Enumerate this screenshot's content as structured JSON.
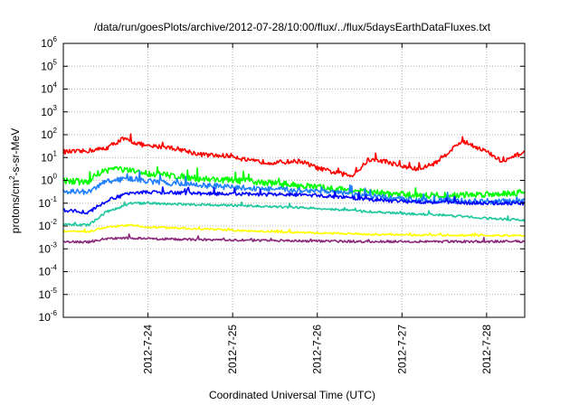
{
  "chart_data": {
    "type": "line",
    "title": "/data/run/goesPlots/archive/2012-07-28/10:00/flux/../flux/5daysEarthDataFluxes.txt",
    "xlabel": "Coordinated Universal Time (UTC)",
    "ylabel": {
      "prefix": "protons/cm",
      "sup": "2",
      "suffix": "-s-sr-MeV"
    },
    "yscale": "log",
    "ylim_exponent": [
      -6,
      6
    ],
    "y_tick_labels": [
      {
        "exp": 6,
        "base": "10",
        "sup": "6"
      },
      {
        "exp": 5,
        "base": "10",
        "sup": "5"
      },
      {
        "exp": 4,
        "base": "10",
        "sup": "4"
      },
      {
        "exp": 3,
        "base": "10",
        "sup": "3"
      },
      {
        "exp": 2,
        "base": "10",
        "sup": "2"
      },
      {
        "exp": 1,
        "base": "10",
        "sup": "1"
      },
      {
        "exp": 0,
        "base": "10",
        "sup": "0"
      },
      {
        "exp": -1,
        "base": "10",
        "sup": "-1"
      },
      {
        "exp": -2,
        "base": "10",
        "sup": "-2"
      },
      {
        "exp": -3,
        "base": "10",
        "sup": "-3"
      },
      {
        "exp": -4,
        "base": "10",
        "sup": "-4"
      },
      {
        "exp": -5,
        "base": "10",
        "sup": "-5"
      },
      {
        "exp": -6,
        "base": "10",
        "sup": "-6"
      }
    ],
    "x_range_days": [
      23.0,
      28.45
    ],
    "x_ticks": [
      {
        "day": 24,
        "label": "2012-7-24"
      },
      {
        "day": 25,
        "label": "2012-7-25"
      },
      {
        "day": 26,
        "label": "2012-7-26"
      },
      {
        "day": 27,
        "label": "2012-7-27"
      },
      {
        "day": 28,
        "label": "2012-7-28"
      }
    ],
    "grid": true,
    "series": [
      {
        "color": "#ff0000",
        "noise": 0.1,
        "x": [
          23.0,
          23.2,
          23.5,
          23.7,
          23.9,
          24.0,
          24.2,
          24.4,
          24.6,
          24.8,
          25.0,
          25.2,
          25.5,
          25.8,
          26.0,
          26.2,
          26.4,
          26.5,
          26.6,
          26.8,
          27.0,
          27.2,
          27.4,
          27.6,
          27.7,
          27.8,
          28.0,
          28.2,
          28.3,
          28.45
        ],
        "y": [
          18,
          18,
          25,
          65,
          40,
          30,
          30,
          22,
          14,
          12,
          12,
          7,
          6,
          7,
          3.5,
          2.2,
          1.6,
          3,
          8,
          7,
          4,
          3,
          6,
          25,
          50,
          40,
          18,
          6,
          10,
          18
        ]
      },
      {
        "color": "#00ff00",
        "noise": 0.14,
        "x": [
          23.0,
          23.3,
          23.4,
          23.6,
          23.8,
          24.0,
          24.3,
          24.6,
          25.0,
          25.4,
          25.8,
          26.0,
          26.3,
          26.6,
          26.9,
          27.2,
          27.6,
          28.0,
          28.45
        ],
        "y": [
          1.0,
          0.8,
          2.0,
          3.5,
          2.5,
          2.0,
          1.6,
          1.2,
          1.0,
          0.8,
          0.6,
          0.5,
          0.4,
          0.3,
          0.25,
          0.22,
          0.22,
          0.25,
          0.3
        ]
      },
      {
        "color": "#1f7fff",
        "noise": 0.12,
        "x": [
          23.0,
          23.3,
          23.5,
          23.8,
          24.0,
          24.4,
          25.0,
          25.5,
          26.0,
          26.5,
          27.0,
          27.5,
          28.0,
          28.45
        ],
        "y": [
          0.35,
          0.3,
          0.9,
          1.2,
          0.9,
          0.7,
          0.5,
          0.4,
          0.35,
          0.22,
          0.15,
          0.13,
          0.12,
          0.12
        ]
      },
      {
        "color": "#0000ff",
        "noise": 0.08,
        "x": [
          23.0,
          23.3,
          23.5,
          23.8,
          24.0,
          24.4,
          25.0,
          25.5,
          26.0,
          26.5,
          27.0,
          27.5,
          28.0,
          28.45
        ],
        "y": [
          0.05,
          0.04,
          0.12,
          0.3,
          0.3,
          0.28,
          0.25,
          0.24,
          0.22,
          0.16,
          0.12,
          0.11,
          0.1,
          0.1
        ]
      },
      {
        "color": "#20c8a0",
        "noise": 0.05,
        "x": [
          23.0,
          23.3,
          23.5,
          23.8,
          24.0,
          24.4,
          25.0,
          25.5,
          26.0,
          26.5,
          27.0,
          27.5,
          28.0,
          28.45
        ],
        "y": [
          0.012,
          0.011,
          0.04,
          0.1,
          0.1,
          0.09,
          0.08,
          0.07,
          0.06,
          0.045,
          0.035,
          0.03,
          0.022,
          0.018
        ]
      },
      {
        "color": "#ffff00",
        "noise": 0.04,
        "x": [
          23.0,
          23.3,
          23.5,
          23.8,
          24.0,
          24.4,
          25.0,
          25.5,
          26.0,
          26.5,
          27.0,
          27.5,
          28.0,
          28.45
        ],
        "y": [
          0.006,
          0.0055,
          0.009,
          0.011,
          0.009,
          0.008,
          0.0065,
          0.0055,
          0.005,
          0.0045,
          0.004,
          0.004,
          0.0038,
          0.0038
        ]
      },
      {
        "color": "#8b2a7a",
        "noise": 0.05,
        "x": [
          23.0,
          23.3,
          23.5,
          23.8,
          24.0,
          24.4,
          25.0,
          25.5,
          26.0,
          26.5,
          27.0,
          27.5,
          28.0,
          28.45
        ],
        "y": [
          0.002,
          0.002,
          0.0028,
          0.003,
          0.0028,
          0.0026,
          0.0024,
          0.0023,
          0.0022,
          0.0021,
          0.0021,
          0.0021,
          0.0021,
          0.0021
        ]
      }
    ]
  }
}
